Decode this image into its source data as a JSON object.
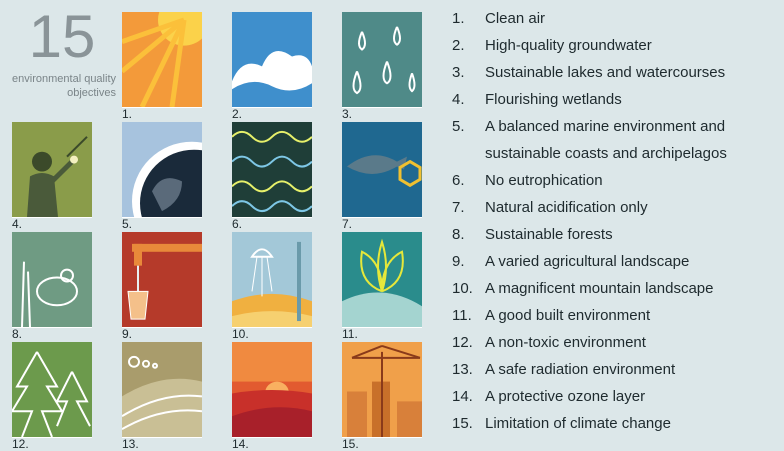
{
  "header": {
    "number": "15",
    "subtitle": "environmental quality objectives"
  },
  "icons": [
    "1.",
    "2.",
    "3.",
    "4.",
    "5.",
    "6.",
    "7.",
    "8.",
    "9.",
    "10.",
    "11.",
    "12.",
    "13.",
    "14.",
    "15."
  ],
  "list": [
    {
      "number": "1.",
      "text": "Clean air"
    },
    {
      "number": "2.",
      "text": "High-quality groundwater"
    },
    {
      "number": "3.",
      "text": "Sustainable lakes and watercourses"
    },
    {
      "number": "4.",
      "text": "Flourishing wetlands"
    },
    {
      "number": "5.",
      "text": "A balanced marine environment and sustainable coasts and archipelagos"
    },
    {
      "number": "6.",
      "text": "No eutrophication"
    },
    {
      "number": "7.",
      "text": "Natural acidification only"
    },
    {
      "number": "8.",
      "text": "Sustainable forests"
    },
    {
      "number": "9.",
      "text": "A varied agricultural landscape"
    },
    {
      "number": "10.",
      "text": "A magnificent mountain landscape"
    },
    {
      "number": "11.",
      "text": "A good built environment"
    },
    {
      "number": "12.",
      "text": "A non-toxic environment"
    },
    {
      "number": "13.",
      "text": "A safe radiation environment"
    },
    {
      "number": "14.",
      "text": "A protective ozone layer"
    },
    {
      "number": "15.",
      "text": "Limitation of climate change"
    }
  ]
}
